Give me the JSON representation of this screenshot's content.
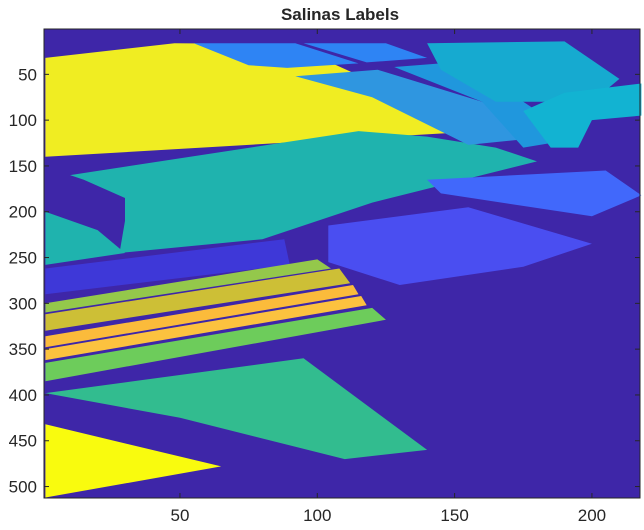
{
  "chart_data": {
    "type": "heatmap",
    "title": "Salinas Labels",
    "xlabel": "",
    "ylabel": "",
    "xlim": [
      0.5,
      217.5
    ],
    "ylim": [
      0.5,
      512.5
    ],
    "y_direction": "reversed",
    "x_ticks": [
      50,
      100,
      150,
      200
    ],
    "y_ticks": [
      50,
      100,
      150,
      200,
      250,
      300,
      350,
      400,
      450,
      500
    ],
    "x_tick_labels": [
      "50",
      "100",
      "150",
      "200"
    ],
    "y_tick_labels": [
      "50",
      "100",
      "150",
      "200",
      "250",
      "300",
      "350",
      "400",
      "450",
      "500"
    ],
    "colormap": "parula",
    "background_color": "#3e26a8",
    "regions": [
      {
        "label": "yellow field",
        "color": "#f0ed22",
        "points": [
          [
            1,
            32
          ],
          [
            48,
            16
          ],
          [
            90,
            17
          ],
          [
            160,
            112
          ],
          [
            1,
            140
          ]
        ]
      },
      {
        "label": "teal field",
        "color": "#1fb3ae",
        "points": [
          [
            10,
            160
          ],
          [
            115,
            112
          ],
          [
            140,
            118
          ],
          [
            165,
            130
          ],
          [
            180,
            145
          ],
          [
            120,
            190
          ],
          [
            80,
            230
          ],
          [
            28,
            245
          ],
          [
            30,
            210
          ],
          [
            30,
            185
          ],
          [
            15,
            165
          ]
        ]
      },
      {
        "label": "left teal strip",
        "color": "#1fb3ae",
        "points": [
          [
            1,
            200
          ],
          [
            20,
            220
          ],
          [
            30,
            245
          ],
          [
            1,
            258
          ]
        ]
      },
      {
        "label": "blue top strip",
        "color": "#2e84f4",
        "points": [
          [
            55,
            16
          ],
          [
            92,
            16
          ],
          [
            115,
            38
          ],
          [
            89,
            43
          ],
          [
            75,
            40
          ]
        ]
      },
      {
        "label": "blue strip 2",
        "color": "#2e84f4",
        "points": [
          [
            95,
            16
          ],
          [
            125,
            16
          ],
          [
            140,
            32
          ],
          [
            118,
            37
          ]
        ]
      },
      {
        "label": "mid blue diagonal",
        "color": "#2f96e0",
        "points": [
          [
            92,
            52
          ],
          [
            122,
            45
          ],
          [
            160,
            80
          ],
          [
            178,
            120
          ],
          [
            155,
            127
          ],
          [
            120,
            75
          ]
        ]
      },
      {
        "label": "blue field 3",
        "color": "#2097dd",
        "points": [
          [
            128,
            42
          ],
          [
            145,
            38
          ],
          [
            175,
            80
          ],
          [
            195,
            120
          ],
          [
            175,
            130
          ],
          [
            160,
            80
          ]
        ]
      },
      {
        "label": "light blue block",
        "color": "#16aad0",
        "points": [
          [
            140,
            16
          ],
          [
            190,
            14
          ],
          [
            210,
            55
          ],
          [
            200,
            80
          ],
          [
            165,
            80
          ],
          [
            145,
            45
          ]
        ]
      },
      {
        "label": "teal blue block",
        "color": "#12b3d2",
        "points": [
          [
            190,
            70
          ],
          [
            218,
            60
          ],
          [
            218,
            95
          ],
          [
            200,
            100
          ],
          [
            195,
            130
          ],
          [
            185,
            130
          ],
          [
            175,
            90
          ]
        ]
      },
      {
        "label": "blue band",
        "color": "#4168fb",
        "points": [
          [
            140,
            165
          ],
          [
            205,
            155
          ],
          [
            218,
            182
          ],
          [
            200,
            205
          ],
          [
            145,
            180
          ]
        ]
      },
      {
        "label": "lower blue block",
        "color": "#4a4ef1",
        "points": [
          [
            104,
            215
          ],
          [
            155,
            195
          ],
          [
            200,
            235
          ],
          [
            175,
            260
          ],
          [
            130,
            280
          ],
          [
            104,
            255
          ]
        ]
      },
      {
        "label": "indigo band",
        "color": "#3e38d8",
        "points": [
          [
            1,
            262
          ],
          [
            88,
            230
          ],
          [
            90,
            258
          ],
          [
            1,
            290
          ]
        ]
      },
      {
        "label": "green band 1",
        "color": "#94c84b",
        "points": [
          [
            1,
            300
          ],
          [
            100,
            252
          ],
          [
            105,
            262
          ],
          [
            1,
            310
          ]
        ]
      },
      {
        "label": "olive band",
        "color": "#cdbf36",
        "points": [
          [
            1,
            312
          ],
          [
            108,
            262
          ],
          [
            112,
            278
          ],
          [
            1,
            330
          ]
        ]
      },
      {
        "label": "orange band 1",
        "color": "#fbbb3b",
        "points": [
          [
            1,
            336
          ],
          [
            113,
            280
          ],
          [
            115,
            290
          ],
          [
            1,
            348
          ]
        ]
      },
      {
        "label": "orange band 2",
        "color": "#fcc23f",
        "points": [
          [
            1,
            350
          ],
          [
            116,
            292
          ],
          [
            118,
            302
          ],
          [
            1,
            362
          ]
        ]
      },
      {
        "label": "green band 2",
        "color": "#6dcc5b",
        "points": [
          [
            1,
            365
          ],
          [
            120,
            305
          ],
          [
            125,
            318
          ],
          [
            1,
            385
          ]
        ]
      },
      {
        "label": "green field",
        "color": "#32bc8f",
        "points": [
          [
            1,
            398
          ],
          [
            95,
            360
          ],
          [
            140,
            460
          ],
          [
            110,
            470
          ],
          [
            50,
            425
          ]
        ]
      },
      {
        "label": "yellow corner",
        "color": "#f9fb0e",
        "points": [
          [
            1,
            432
          ],
          [
            65,
            478
          ],
          [
            1,
            512
          ]
        ]
      }
    ]
  }
}
